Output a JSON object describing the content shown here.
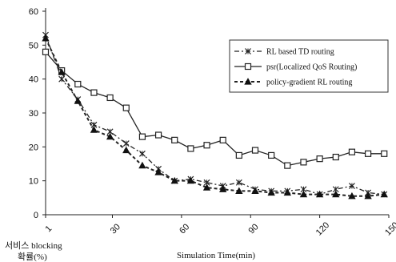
{
  "chart_data": {
    "type": "line",
    "title": "",
    "xlabel": "Simulation Time(min)",
    "ylabel": "서비스 blocking\n확률(%)",
    "ylim": [
      0,
      60
    ],
    "xlim": [
      1,
      150
    ],
    "y_ticks": [
      "0",
      "10",
      "20",
      "30",
      "40",
      "50",
      "60"
    ],
    "x_ticks": [
      {
        "value": 1,
        "label": "1"
      },
      {
        "value": 30,
        "label": "30"
      },
      {
        "value": 60,
        "label": "60"
      },
      {
        "value": 90,
        "label": "90"
      },
      {
        "value": 120,
        "label": "120"
      },
      {
        "value": 150,
        "label": "150"
      }
    ],
    "grid": false,
    "legend_position": "top-right",
    "x": [
      1,
      8,
      15,
      22,
      29,
      36,
      43,
      50,
      57,
      64,
      71,
      78,
      85,
      92,
      99,
      106,
      113,
      120,
      127,
      134,
      141,
      148
    ],
    "series": [
      {
        "name": "RL based TD routing",
        "marker": "x",
        "dash": "6,3,2,3",
        "values": [
          53,
          40,
          34,
          26.5,
          24.5,
          21,
          18,
          13.5,
          10,
          10.5,
          9.5,
          8.5,
          9.5,
          7.5,
          7,
          7,
          7.5,
          6,
          7.5,
          8.5,
          6.5,
          6
        ]
      },
      {
        "name": "psr(Localized QoS Routing)",
        "marker": "square",
        "dash": "",
        "values": [
          48,
          42.5,
          38.5,
          36,
          34.5,
          31.5,
          23,
          23.5,
          22,
          19.5,
          20.5,
          22,
          17.5,
          19,
          17.5,
          14.5,
          15.5,
          16.5,
          17,
          18.5,
          18,
          18
        ]
      },
      {
        "name": "policy-gradient RL routing",
        "marker": "triangle",
        "dash": "4,3",
        "values": [
          52,
          42,
          33.5,
          25,
          23,
          19,
          14.5,
          12.5,
          10,
          10,
          8,
          7.5,
          7,
          7,
          6.5,
          6.5,
          6,
          6,
          6,
          5.5,
          5.5,
          6
        ]
      }
    ]
  }
}
